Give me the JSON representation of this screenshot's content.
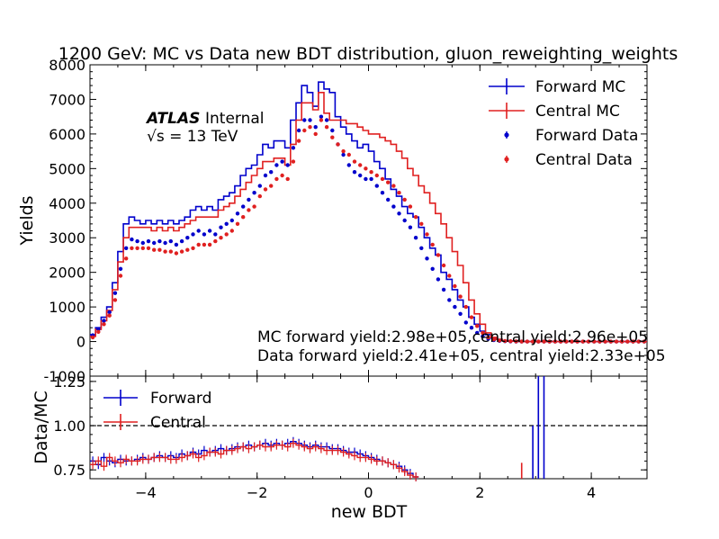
{
  "chart_data": [
    {
      "type": "line",
      "panel": "main",
      "title": "1200 GeV: MC vs Data new BDT distribution, gluon_reweighting_weights",
      "xlabel": "",
      "ylabel": "Yields",
      "xlim": [
        -5,
        5
      ],
      "ylim": [
        -1000,
        8000
      ],
      "xticks": [
        -4,
        -2,
        0,
        2,
        4
      ],
      "yticks": [
        -1000,
        0,
        1000,
        2000,
        3000,
        4000,
        5000,
        6000,
        7000,
        8000
      ],
      "atlas_label": "ATLAS",
      "atlas_sublabel": "Internal",
      "energy_label": "√s = 13 TeV",
      "annotations": [
        "MC forward yield:2.98e+05,central yield:2.96e+05",
        "Data forward yield:2.41e+05, central yield:2.33e+05"
      ],
      "legend_position": "top-right",
      "x": [
        -4.95,
        -4.85,
        -4.75,
        -4.65,
        -4.55,
        -4.45,
        -4.35,
        -4.25,
        -4.15,
        -4.05,
        -3.95,
        -3.85,
        -3.75,
        -3.65,
        -3.55,
        -3.45,
        -3.35,
        -3.25,
        -3.15,
        -3.05,
        -2.95,
        -2.85,
        -2.75,
        -2.65,
        -2.55,
        -2.45,
        -2.35,
        -2.25,
        -2.15,
        -2.05,
        -1.95,
        -1.85,
        -1.75,
        -1.65,
        -1.55,
        -1.45,
        -1.35,
        -1.25,
        -1.15,
        -1.05,
        -0.95,
        -0.85,
        -0.75,
        -0.65,
        -0.55,
        -0.45,
        -0.35,
        -0.25,
        -0.15,
        -0.05,
        0.05,
        0.15,
        0.25,
        0.35,
        0.45,
        0.55,
        0.65,
        0.75,
        0.85,
        0.95,
        1.05,
        1.15,
        1.25,
        1.35,
        1.45,
        1.55,
        1.65,
        1.75,
        1.85,
        1.95,
        2.05,
        2.15,
        2.25,
        2.35,
        2.45,
        2.55,
        2.65,
        2.75,
        2.85,
        2.95,
        3.05,
        3.15,
        3.25,
        3.35,
        3.45,
        3.55,
        3.65,
        3.75,
        3.85,
        3.95,
        4.05,
        4.15,
        4.25,
        4.35,
        4.45,
        4.55,
        4.65,
        4.75,
        4.85,
        4.95
      ],
      "series": [
        {
          "name": "Forward MC",
          "style": "step",
          "color": "#0000cc",
          "values": [
            200,
            400,
            700,
            1000,
            1700,
            2600,
            3400,
            3600,
            3500,
            3400,
            3500,
            3400,
            3500,
            3400,
            3500,
            3400,
            3500,
            3600,
            3800,
            3900,
            3800,
            3900,
            3800,
            4100,
            4200,
            4300,
            4500,
            4800,
            5000,
            5100,
            5400,
            5700,
            5600,
            5800,
            5800,
            5600,
            6400,
            6900,
            7400,
            7200,
            6800,
            7500,
            7300,
            7200,
            6500,
            6200,
            6000,
            5800,
            5600,
            5700,
            5500,
            5200,
            5000,
            4700,
            4400,
            4200,
            3900,
            3700,
            3600,
            3300,
            3000,
            2700,
            2500,
            2000,
            1800,
            1500,
            1200,
            1000,
            700,
            500,
            300,
            200,
            100,
            60,
            30,
            20,
            10,
            5,
            0,
            0,
            0,
            0,
            0,
            0,
            0,
            0,
            0,
            0,
            0,
            0,
            0,
            0,
            0,
            0,
            0,
            0,
            0,
            0,
            0,
            0
          ]
        },
        {
          "name": "Central MC",
          "style": "step",
          "color": "#e02020",
          "values": [
            150,
            350,
            600,
            900,
            1500,
            2300,
            3000,
            3300,
            3300,
            3300,
            3300,
            3200,
            3300,
            3200,
            3300,
            3200,
            3300,
            3400,
            3500,
            3600,
            3600,
            3600,
            3600,
            3800,
            3900,
            4000,
            4200,
            4400,
            4600,
            4800,
            5000,
            5200,
            5200,
            5300,
            5300,
            5100,
            5700,
            6400,
            6900,
            6900,
            6700,
            7200,
            6600,
            6400,
            6400,
            6400,
            6300,
            6300,
            6200,
            6100,
            6000,
            6000,
            5900,
            5800,
            5700,
            5500,
            5300,
            5000,
            4800,
            4500,
            4300,
            4000,
            3700,
            3400,
            3000,
            2600,
            2200,
            1700,
            1200,
            800,
            500,
            250,
            120,
            60,
            30,
            15,
            8,
            4,
            0,
            0,
            0,
            0,
            0,
            0,
            0,
            0,
            0,
            0,
            0,
            0,
            0,
            0,
            0,
            0,
            0,
            0,
            0,
            0,
            0,
            0
          ]
        },
        {
          "name": "Forward Data",
          "style": "points",
          "color": "#0000cc",
          "values": [
            180,
            350,
            600,
            850,
            1400,
            2100,
            2700,
            2950,
            2900,
            2850,
            2900,
            2850,
            2900,
            2850,
            2900,
            2800,
            2900,
            3000,
            3100,
            3200,
            3100,
            3200,
            3100,
            3300,
            3400,
            3500,
            3700,
            3900,
            4100,
            4300,
            4500,
            4800,
            4900,
            5100,
            5200,
            5100,
            5600,
            6100,
            6400,
            6400,
            6200,
            6500,
            6400,
            6100,
            5700,
            5400,
            5100,
            4900,
            4800,
            4700,
            4700,
            4500,
            4300,
            4100,
            3900,
            3700,
            3500,
            3300,
            3000,
            2700,
            2400,
            2100,
            1800,
            1500,
            1200,
            1000,
            800,
            550,
            400,
            250,
            150,
            80,
            40,
            20,
            10,
            5,
            0,
            0,
            0,
            0,
            0,
            0,
            0,
            0,
            0,
            0,
            0,
            0,
            0,
            0,
            0,
            0,
            0,
            0,
            0,
            0,
            0,
            0,
            0,
            0
          ]
        },
        {
          "name": "Central Data",
          "style": "points",
          "color": "#e02020",
          "values": [
            120,
            280,
            500,
            750,
            1200,
            1900,
            2400,
            2700,
            2700,
            2700,
            2700,
            2650,
            2650,
            2600,
            2600,
            2550,
            2600,
            2650,
            2700,
            2800,
            2800,
            2800,
            2900,
            3000,
            3100,
            3200,
            3400,
            3600,
            3800,
            3900,
            4200,
            4400,
            4500,
            4700,
            4800,
            4700,
            5200,
            5800,
            6100,
            6200,
            6000,
            6400,
            6200,
            5900,
            5700,
            5500,
            5400,
            5200,
            5100,
            5000,
            4900,
            4800,
            4700,
            4600,
            4500,
            4300,
            4100,
            3900,
            3600,
            3400,
            3100,
            2800,
            2500,
            2200,
            1900,
            1600,
            1300,
            1000,
            700,
            450,
            250,
            120,
            60,
            30,
            15,
            8,
            4,
            0,
            0,
            0,
            0,
            0,
            0,
            0,
            0,
            0,
            0,
            0,
            0,
            0,
            0,
            0,
            0,
            0,
            0,
            0,
            0,
            0,
            0,
            0
          ]
        }
      ]
    },
    {
      "type": "line",
      "panel": "ratio",
      "xlabel": "new BDT",
      "ylabel": "Data/MC",
      "xlim": [
        -5,
        5
      ],
      "ylim": [
        0.7,
        1.28
      ],
      "xticks": [
        -4,
        -2,
        0,
        2,
        4
      ],
      "yticks": [
        0.75,
        1.0,
        1.25
      ],
      "reference_line": 1.0,
      "legend_position": "top-left",
      "x": [
        -4.95,
        -4.85,
        -4.75,
        -4.65,
        -4.55,
        -4.45,
        -4.35,
        -4.25,
        -4.15,
        -4.05,
        -3.95,
        -3.85,
        -3.75,
        -3.65,
        -3.55,
        -3.45,
        -3.35,
        -3.25,
        -3.15,
        -3.05,
        -2.95,
        -2.85,
        -2.75,
        -2.65,
        -2.55,
        -2.45,
        -2.35,
        -2.25,
        -2.15,
        -2.05,
        -1.95,
        -1.85,
        -1.75,
        -1.65,
        -1.55,
        -1.45,
        -1.35,
        -1.25,
        -1.15,
        -1.05,
        -0.95,
        -0.85,
        -0.75,
        -0.65,
        -0.55,
        -0.45,
        -0.35,
        -0.25,
        -0.15,
        -0.05,
        0.05,
        0.15,
        0.25,
        0.35,
        0.45,
        0.55,
        0.65,
        0.75,
        0.85
      ],
      "series": [
        {
          "name": "Forward",
          "color": "#0000cc",
          "values": [
            0.8,
            0.78,
            0.82,
            0.8,
            0.79,
            0.81,
            0.8,
            0.8,
            0.81,
            0.82,
            0.81,
            0.82,
            0.83,
            0.82,
            0.83,
            0.82,
            0.84,
            0.83,
            0.85,
            0.84,
            0.86,
            0.85,
            0.86,
            0.87,
            0.86,
            0.87,
            0.88,
            0.88,
            0.89,
            0.88,
            0.89,
            0.9,
            0.89,
            0.9,
            0.89,
            0.9,
            0.91,
            0.9,
            0.89,
            0.88,
            0.89,
            0.88,
            0.88,
            0.87,
            0.87,
            0.86,
            0.85,
            0.85,
            0.84,
            0.83,
            0.82,
            0.81,
            0.8,
            0.79,
            0.78,
            0.77,
            0.75,
            0.73,
            0.71
          ]
        },
        {
          "name": "Central",
          "color": "#e02020",
          "values": [
            0.78,
            0.8,
            0.77,
            0.82,
            0.8,
            0.79,
            0.81,
            0.8,
            0.8,
            0.81,
            0.81,
            0.82,
            0.82,
            0.82,
            0.81,
            0.81,
            0.82,
            0.83,
            0.84,
            0.82,
            0.83,
            0.85,
            0.85,
            0.84,
            0.86,
            0.86,
            0.87,
            0.88,
            0.87,
            0.88,
            0.89,
            0.88,
            0.88,
            0.89,
            0.89,
            0.88,
            0.9,
            0.89,
            0.88,
            0.87,
            0.88,
            0.87,
            0.86,
            0.86,
            0.86,
            0.85,
            0.84,
            0.83,
            0.82,
            0.82,
            0.81,
            0.8,
            0.8,
            0.79,
            0.78,
            0.76,
            0.74,
            0.72,
            0.71
          ]
        }
      ],
      "spikes": [
        {
          "series": "Forward",
          "x": 2.95,
          "low": 0.7,
          "high": 1.0
        },
        {
          "series": "Forward",
          "x": 3.05,
          "low": 0.7,
          "high": 1.28
        },
        {
          "series": "Forward",
          "x": 3.15,
          "low": 0.7,
          "high": 1.28
        },
        {
          "series": "Central",
          "x": 2.75,
          "low": 0.7,
          "high": 0.79
        }
      ]
    }
  ]
}
